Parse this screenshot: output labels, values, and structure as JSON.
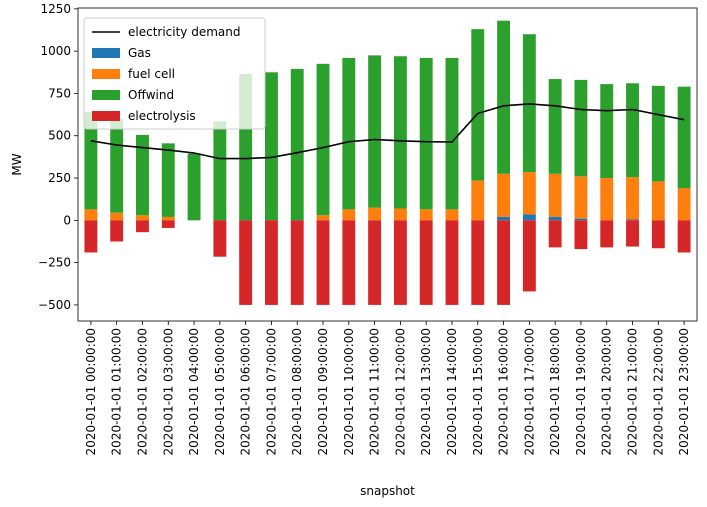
{
  "chart_data": {
    "type": "bar",
    "stacked": true,
    "xlabel": "snapshot",
    "ylabel": "MW",
    "ylim": [
      -595,
      1255
    ],
    "yticks": [
      -500,
      -250,
      0,
      250,
      500,
      750,
      1000,
      1250
    ],
    "ytick_labels": [
      "−500",
      "−250",
      "0",
      "250",
      "500",
      "750",
      "1000",
      "1250"
    ],
    "categories": [
      "2020-01-01 00:00:00",
      "2020-01-01 01:00:00",
      "2020-01-01 02:00:00",
      "2020-01-01 03:00:00",
      "2020-01-01 04:00:00",
      "2020-01-01 05:00:00",
      "2020-01-01 06:00:00",
      "2020-01-01 07:00:00",
      "2020-01-01 08:00:00",
      "2020-01-01 09:00:00",
      "2020-01-01 10:00:00",
      "2020-01-01 11:00:00",
      "2020-01-01 12:00:00",
      "2020-01-01 13:00:00",
      "2020-01-01 14:00:00",
      "2020-01-01 15:00:00",
      "2020-01-01 16:00:00",
      "2020-01-01 17:00:00",
      "2020-01-01 18:00:00",
      "2020-01-01 19:00:00",
      "2020-01-01 20:00:00",
      "2020-01-01 21:00:00",
      "2020-01-01 22:00:00",
      "2020-01-01 23:00:00"
    ],
    "series": [
      {
        "name": "Gas",
        "color": "#1f77b4",
        "values": [
          0,
          0,
          0,
          0,
          0,
          0,
          0,
          0,
          0,
          0,
          0,
          0,
          0,
          0,
          0,
          0,
          20,
          35,
          20,
          10,
          0,
          5,
          0,
          0
        ]
      },
      {
        "name": "fuel cell",
        "color": "#ff7f0e",
        "values": [
          65,
          45,
          30,
          20,
          0,
          0,
          0,
          0,
          0,
          30,
          65,
          75,
          70,
          65,
          65,
          235,
          255,
          250,
          255,
          250,
          250,
          250,
          230,
          190
        ]
      },
      {
        "name": "Offwind",
        "color": "#2ca02c",
        "values": [
          575,
          555,
          475,
          435,
          395,
          585,
          865,
          875,
          895,
          895,
          895,
          900,
          900,
          895,
          895,
          895,
          905,
          815,
          560,
          570,
          555,
          555,
          565,
          600
        ]
      },
      {
        "name": "electrolysis",
        "color": "#d62728",
        "values": [
          -190,
          -125,
          -70,
          -45,
          0,
          -215,
          -500,
          -500,
          -500,
          -500,
          -500,
          -500,
          -500,
          -500,
          -500,
          -500,
          -500,
          -420,
          -160,
          -170,
          -160,
          -155,
          -165,
          -190
        ]
      }
    ],
    "line": {
      "name": "electricity demand",
      "color": "#000000",
      "values": [
        470,
        445,
        430,
        415,
        398,
        365,
        365,
        372,
        400,
        430,
        465,
        478,
        470,
        465,
        463,
        632,
        677,
        688,
        677,
        655,
        648,
        655,
        625,
        595
      ]
    },
    "legend_position": "top-left",
    "legend_order": [
      "electricity demand",
      "Gas",
      "fuel cell",
      "Offwind",
      "electrolysis"
    ],
    "grid": false
  }
}
